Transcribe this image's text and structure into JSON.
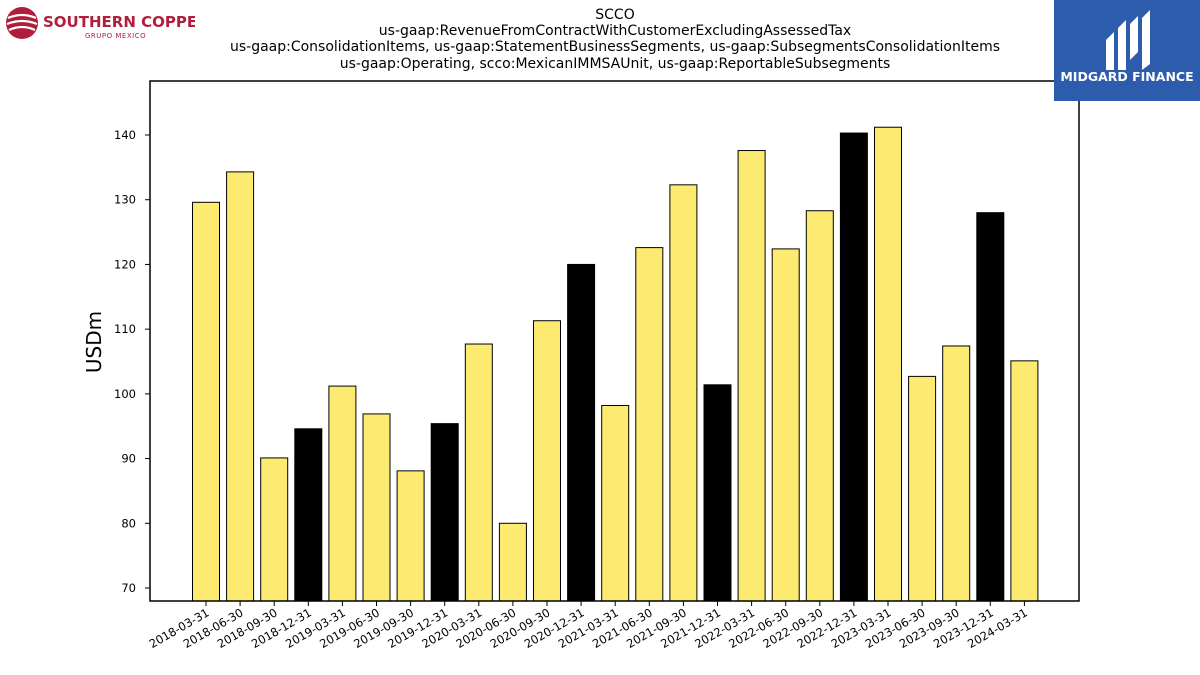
{
  "header": {
    "title_lines": [
      "SCCO",
      "us-gaap:RevenueFromContractWithCustomerExcludingAssessedTax",
      "us-gaap:ConsolidationItems, us-gaap:StatementBusinessSegments, us-gaap:SubsegmentsConsolidationItems",
      "us-gaap:Operating, scco:MexicanIMMSAUnit, us-gaap:ReportableSubsegments"
    ]
  },
  "logos": {
    "left": {
      "name": "SOUTHERN COPPER",
      "sub": "GRUPO MEXICO",
      "color": "#b01e3c"
    },
    "right": {
      "name": "MIDGARD FINANCE",
      "background": "#2d5cac"
    }
  },
  "chart_data": {
    "type": "bar",
    "title": "SCCO",
    "xlabel": "",
    "ylabel": "USDm",
    "ylim": [
      68,
      148
    ],
    "yticks": [
      70,
      80,
      90,
      100,
      110,
      120,
      130,
      140
    ],
    "grid": false,
    "colors": {
      "quarter": "#fdeb71",
      "year_end": "#000000",
      "edge": "#000000"
    },
    "categories": [
      "2018-03-31",
      "2018-06-30",
      "2018-09-30",
      "2018-12-31",
      "2019-03-31",
      "2019-06-30",
      "2019-09-30",
      "2019-12-31",
      "2020-03-31",
      "2020-06-30",
      "2020-09-30",
      "2020-12-31",
      "2021-03-31",
      "2021-06-30",
      "2021-09-30",
      "2021-12-31",
      "2022-03-31",
      "2022-06-30",
      "2022-09-30",
      "2022-12-31",
      "2023-03-31",
      "2023-06-30",
      "2023-09-30",
      "2023-12-31",
      "2024-03-31"
    ],
    "values": [
      129.6,
      134.3,
      90.1,
      94.6,
      101.2,
      96.9,
      88.1,
      95.4,
      107.7,
      80.0,
      111.3,
      120.0,
      98.2,
      122.6,
      132.3,
      101.4,
      137.6,
      122.4,
      128.3,
      140.3,
      141.2,
      102.7,
      107.4,
      128.0,
      105.1
    ],
    "year_end": [
      false,
      false,
      false,
      true,
      false,
      false,
      false,
      true,
      false,
      false,
      false,
      true,
      false,
      false,
      false,
      true,
      false,
      false,
      false,
      true,
      false,
      false,
      false,
      true,
      false
    ]
  }
}
